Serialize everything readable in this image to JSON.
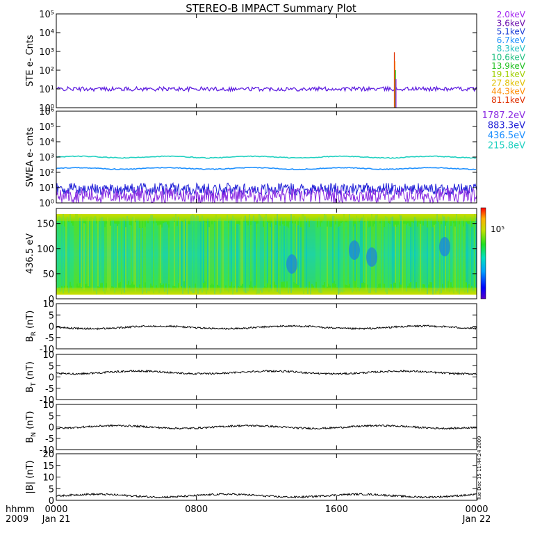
{
  "chart_data": {
    "type": "multi-panel-timeseries",
    "title": "STEREO-B IMPACT Summary Plot",
    "time_axis": {
      "label_left_top": "hhmm",
      "label_left_bottom": "2009",
      "ticks": [
        {
          "time": "0000",
          "date": "Jan 21"
        },
        {
          "time": "0800",
          "date": ""
        },
        {
          "time": "1600",
          "date": ""
        },
        {
          "time": "0000",
          "date": "Jan 22"
        }
      ],
      "x_hours": [
        0,
        8,
        16,
        24
      ]
    },
    "timestamp_label": "Tue Dec 15 11:44:24 2009",
    "panels": [
      {
        "id": "ste",
        "type": "line",
        "ylabel": "STE e- Cnts",
        "yscale": "log",
        "yticks": [
          "10⁰",
          "10¹",
          "10²",
          "10³",
          "10⁴",
          "10⁵"
        ],
        "ylim": [
          1,
          100000
        ],
        "legend": [
          {
            "name": "2.0keV",
            "color": "#a020f0"
          },
          {
            "name": "3.6keV",
            "color": "#6a0dad"
          },
          {
            "name": "5.1keV",
            "color": "#1c3fd6"
          },
          {
            "name": "6.7keV",
            "color": "#1e90ff"
          },
          {
            "name": "8.3keV",
            "color": "#20c0c0"
          },
          {
            "name": "10.6keV",
            "color": "#20c080"
          },
          {
            "name": "13.9keV",
            "color": "#20c020"
          },
          {
            "name": "19.1keV",
            "color": "#a0d000"
          },
          {
            "name": "27.8keV",
            "color": "#e0c000"
          },
          {
            "name": "44.3keV",
            "color": "#ff8c00"
          },
          {
            "name": "81.1keV",
            "color": "#e03000"
          }
        ],
        "series": [
          {
            "name": "2.0keV",
            "baseline": 10,
            "spike_hour": 19.3,
            "spike_value": 900
          }
        ]
      },
      {
        "id": "swea",
        "type": "line",
        "ylabel": "SWEA e- cnts",
        "yscale": "log",
        "yticks": [
          "10⁰",
          "10¹",
          "10²",
          "10³",
          "10⁴",
          "10⁵",
          "10⁶"
        ],
        "ylim": [
          1,
          1000000
        ],
        "legend": [
          {
            "name": "1787.2eV",
            "color": "#8a2be2"
          },
          {
            "name": "883.3eV",
            "color": "#1c1cd6"
          },
          {
            "name": "436.5eV",
            "color": "#1e90ff"
          },
          {
            "name": "215.8eV",
            "color": "#20d0c0"
          }
        ],
        "series": [
          {
            "name": "215.8eV",
            "baseline": 1000
          },
          {
            "name": "436.5eV",
            "baseline": 180
          },
          {
            "name": "883.3eV",
            "baseline": 8
          },
          {
            "name": "1787.2eV",
            "baseline": 3
          }
        ]
      },
      {
        "id": "pad",
        "type": "heatmap",
        "ylabel": "436.5 eV",
        "yticks": [
          "0",
          "50",
          "100",
          "150"
        ],
        "ylim": [
          0,
          180
        ],
        "colorbar_label": "10⁵"
      },
      {
        "id": "br",
        "type": "line",
        "ylabel_main": "B",
        "ylabel_sub": "R",
        "ylabel_unit": " (nT)",
        "yticks": [
          "-10",
          "-5",
          "0",
          "5",
          "10"
        ],
        "ylim": [
          -10,
          10
        ],
        "approx_level": -0.5
      },
      {
        "id": "bt",
        "type": "line",
        "ylabel_main": "B",
        "ylabel_sub": "T",
        "ylabel_unit": " (nT)",
        "yticks": [
          "-10",
          "-5",
          "0",
          "5",
          "10"
        ],
        "ylim": [
          -10,
          10
        ],
        "approx_level": 2
      },
      {
        "id": "bn",
        "type": "line",
        "ylabel_main": "B",
        "ylabel_sub": "N",
        "ylabel_unit": " (nT)",
        "yticks": [
          "-10",
          "-5",
          "0",
          "5",
          "10"
        ],
        "ylim": [
          -10,
          10
        ],
        "approx_level": 0
      },
      {
        "id": "bmag",
        "type": "line",
        "ylabel": "|B| (nT)",
        "yticks": [
          "0",
          "5",
          "10",
          "15",
          "20"
        ],
        "ylim": [
          0,
          20
        ],
        "approx_level": 2
      }
    ]
  }
}
